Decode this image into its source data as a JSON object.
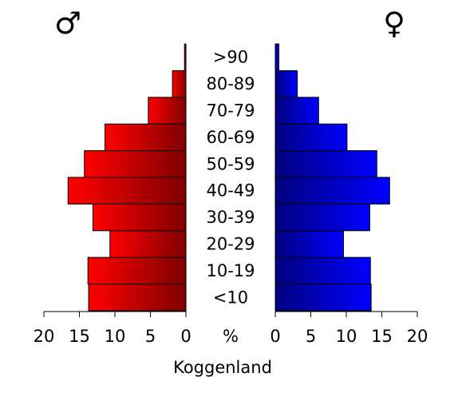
{
  "chart_data": {
    "type": "bar",
    "subtype": "population-pyramid",
    "categories": [
      "<10",
      "10-19",
      "20-29",
      "30-39",
      "40-49",
      "50-59",
      "60-69",
      "70-79",
      "80-89",
      ">90"
    ],
    "series": [
      {
        "name": "♂",
        "values": [
          13.7,
          13.8,
          10.7,
          13.1,
          16.6,
          14.3,
          11.4,
          5.3,
          1.9,
          0.2
        ],
        "color": "#ff0000"
      },
      {
        "name": "♀",
        "values": [
          13.5,
          13.4,
          9.6,
          13.3,
          16.1,
          14.3,
          10.1,
          6.1,
          3.1,
          0.5
        ],
        "color": "#0000ff"
      }
    ],
    "xlabel": "Koggenland",
    "unit_label": "%",
    "xlim": [
      0,
      20
    ],
    "ticks": [
      0,
      5,
      10,
      15,
      20
    ],
    "left_gradient": [
      "#ff0000",
      "#7f0000"
    ],
    "right_gradient": [
      "#00007f",
      "#0000ff"
    ],
    "grid": false,
    "legend": "symbols-top"
  }
}
